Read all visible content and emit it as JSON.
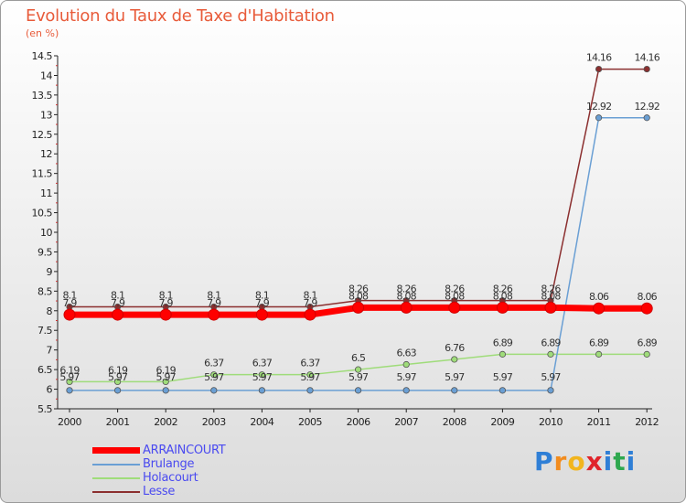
{
  "title": "Evolution du Taux de Taxe d'Habitation",
  "subtitle": "(en %)",
  "chart_data": {
    "type": "line",
    "title": "Evolution du Taux de Taxe d'Habitation",
    "ylabel": "(en %)",
    "xlabel": "",
    "ylim": [
      5.5,
      14.5
    ],
    "yticks": [
      "5.5",
      "6",
      "6.5",
      "7",
      "7.5",
      "8",
      "8.5",
      "9",
      "9.5",
      "10",
      "10.5",
      "11",
      "11.5",
      "12",
      "12.5",
      "13",
      "13.5",
      "14",
      "14.5"
    ],
    "categories": [
      "2000",
      "2001",
      "2002",
      "2003",
      "2004",
      "2005",
      "2006",
      "2007",
      "2008",
      "2009",
      "2010",
      "2011",
      "2012"
    ],
    "series": [
      {
        "name": "ARRAINCOURT",
        "color": "#ff0000",
        "values": [
          7.9,
          7.9,
          7.9,
          7.9,
          7.9,
          7.9,
          8.08,
          8.08,
          8.08,
          8.08,
          8.08,
          8.06,
          8.06
        ],
        "labels": [
          "7.9",
          "7.9",
          "7.9",
          "7.9",
          "7.9",
          "7.9",
          "8.08",
          "8.08",
          "8.08",
          "8.08",
          "8.08",
          "8.06",
          "8.06"
        ]
      },
      {
        "name": "Brulange",
        "color": "#6a9fd4",
        "values": [
          5.97,
          5.97,
          5.97,
          5.97,
          5.97,
          5.97,
          5.97,
          5.97,
          5.97,
          5.97,
          5.97,
          12.92,
          12.92
        ],
        "labels": [
          "5.97",
          "5.97",
          "5.97",
          "5.97",
          "5.97",
          "5.97",
          "5.97",
          "5.97",
          "5.97",
          "5.97",
          "5.97",
          "12.92",
          "12.92"
        ]
      },
      {
        "name": "Holacourt",
        "color": "#9fdc7a",
        "values": [
          6.19,
          6.19,
          6.19,
          6.37,
          6.37,
          6.37,
          6.5,
          6.63,
          6.76,
          6.89,
          6.89,
          6.89,
          6.89
        ],
        "labels": [
          "6.19",
          "6.19",
          "6.19",
          "6.37",
          "6.37",
          "6.37",
          "6.5",
          "6.63",
          "6.76",
          "6.89",
          "6.89",
          "6.89",
          "6.89"
        ]
      },
      {
        "name": "Lesse",
        "color": "#8b2f2f",
        "values": [
          8.1,
          8.1,
          8.1,
          8.1,
          8.1,
          8.1,
          8.26,
          8.26,
          8.26,
          8.26,
          8.26,
          14.16,
          14.16
        ],
        "labels": [
          "8.1",
          "8.1",
          "8.1",
          "8.1",
          "8.1",
          "8.1",
          "8.26",
          "8.26",
          "8.26",
          "8.26",
          "8.26",
          "14.16",
          "14.16"
        ]
      }
    ],
    "legend": "bottom-left",
    "grid": false
  },
  "legend_items": [
    "ARRAINCOURT",
    "Brulange",
    "Holacourt",
    "Lesse"
  ],
  "logo": {
    "letters": [
      "P",
      "r",
      "o",
      "x",
      "i",
      "t",
      "i"
    ],
    "colors": [
      "#2f7fd6",
      "#f28c1e",
      "#f2b51e",
      "#e0242b",
      "#2f7fd6",
      "#2fa84f",
      "#2f7fd6"
    ]
  }
}
